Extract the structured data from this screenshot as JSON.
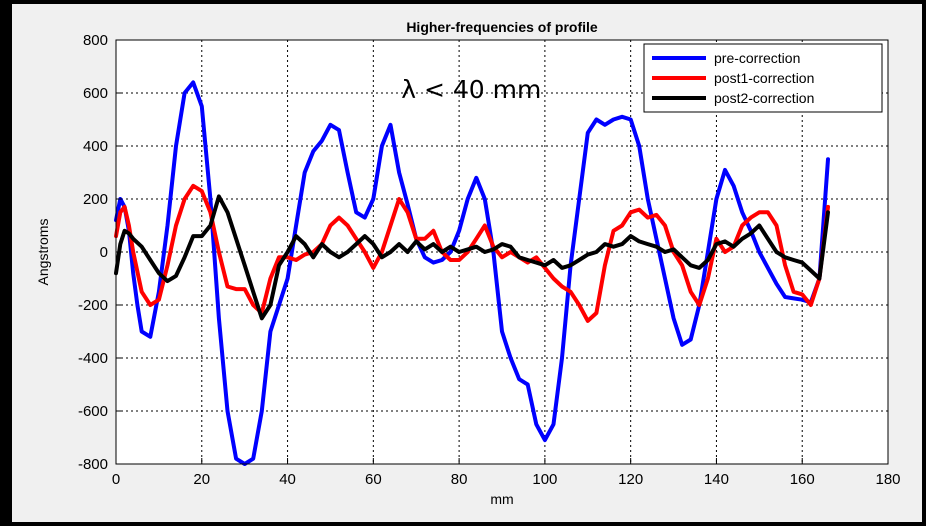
{
  "chart_data": {
    "type": "line",
    "title": "Higher-frequencies of profile",
    "xlabel": "mm",
    "ylabel": "Angstroms",
    "xlim": [
      0,
      180
    ],
    "ylim": [
      -800,
      800
    ],
    "xticks": [
      "0",
      "20",
      "40",
      "60",
      "80",
      "100",
      "120",
      "140",
      "160",
      "180"
    ],
    "yticks": [
      "800",
      "600",
      "400",
      "200",
      "0",
      "-200",
      "-400",
      "-600",
      "-800"
    ],
    "grid": true,
    "legend_position": "top-right",
    "annotation": "λ < 40 mm",
    "series": [
      {
        "name": "pre-correction",
        "color": "#0000ff",
        "x": [
          0,
          1,
          2,
          3,
          4,
          5,
          6,
          8,
          10,
          12,
          14,
          16,
          18,
          20,
          22,
          24,
          26,
          28,
          30,
          32,
          34,
          36,
          38,
          40,
          42,
          44,
          46,
          48,
          50,
          52,
          54,
          56,
          58,
          60,
          62,
          64,
          66,
          68,
          70,
          72,
          74,
          76,
          78,
          80,
          82,
          84,
          86,
          88,
          90,
          92,
          94,
          96,
          98,
          100,
          102,
          104,
          106,
          108,
          110,
          112,
          114,
          116,
          118,
          120,
          122,
          124,
          126,
          128,
          130,
          132,
          134,
          136,
          138,
          140,
          142,
          144,
          146,
          148,
          150,
          152,
          154,
          156,
          158,
          160,
          162,
          164,
          166
        ],
        "values": [
          120,
          200,
          170,
          80,
          -80,
          -200,
          -300,
          -320,
          -150,
          100,
          400,
          600,
          640,
          550,
          200,
          -250,
          -600,
          -780,
          -800,
          -780,
          -600,
          -300,
          -200,
          -100,
          100,
          300,
          380,
          420,
          480,
          460,
          300,
          150,
          130,
          200,
          400,
          480,
          300,
          180,
          50,
          -20,
          -40,
          -30,
          0,
          80,
          200,
          280,
          200,
          0,
          -300,
          -400,
          -480,
          -500,
          -650,
          -710,
          -650,
          -400,
          -50,
          200,
          450,
          500,
          480,
          500,
          510,
          500,
          400,
          200,
          50,
          -100,
          -250,
          -350,
          -330,
          -200,
          0,
          200,
          310,
          250,
          150,
          80,
          0,
          -60,
          -120,
          -170,
          -175,
          -180,
          -190,
          -100,
          350
        ]
      },
      {
        "name": "post1-correction",
        "color": "#ff0000",
        "x": [
          0,
          1,
          2,
          3,
          4,
          6,
          8,
          10,
          12,
          14,
          16,
          18,
          20,
          22,
          24,
          26,
          28,
          30,
          32,
          34,
          36,
          38,
          40,
          42,
          44,
          46,
          48,
          50,
          52,
          54,
          56,
          58,
          60,
          62,
          64,
          66,
          68,
          70,
          72,
          74,
          76,
          78,
          80,
          82,
          84,
          86,
          88,
          90,
          92,
          94,
          96,
          98,
          100,
          102,
          104,
          106,
          108,
          110,
          112,
          114,
          116,
          118,
          120,
          122,
          124,
          126,
          128,
          130,
          132,
          134,
          136,
          138,
          140,
          142,
          144,
          146,
          148,
          150,
          152,
          154,
          156,
          158,
          160,
          162,
          164,
          166
        ],
        "values": [
          60,
          150,
          170,
          100,
          0,
          -150,
          -200,
          -180,
          -50,
          100,
          200,
          250,
          230,
          150,
          0,
          -130,
          -140,
          -140,
          -200,
          -230,
          -100,
          -20,
          -20,
          -30,
          -10,
          0,
          30,
          100,
          130,
          100,
          50,
          0,
          -60,
          0,
          100,
          200,
          150,
          50,
          50,
          80,
          0,
          -30,
          -30,
          0,
          50,
          100,
          20,
          -20,
          0,
          -20,
          -40,
          -20,
          -60,
          -100,
          -130,
          -150,
          -200,
          -260,
          -230,
          -50,
          80,
          100,
          150,
          160,
          130,
          140,
          100,
          0,
          -50,
          -150,
          -200,
          -100,
          50,
          0,
          20,
          100,
          130,
          150,
          150,
          100,
          -50,
          -150,
          -160,
          -200,
          -100,
          170
        ]
      },
      {
        "name": "post2-correction",
        "color": "#000000",
        "x": [
          0,
          1,
          2,
          3,
          4,
          6,
          8,
          10,
          12,
          14,
          16,
          18,
          20,
          22,
          24,
          26,
          28,
          30,
          32,
          34,
          36,
          38,
          40,
          42,
          44,
          46,
          48,
          50,
          52,
          54,
          56,
          58,
          60,
          62,
          64,
          66,
          68,
          70,
          72,
          74,
          76,
          78,
          80,
          82,
          84,
          86,
          88,
          90,
          92,
          94,
          96,
          98,
          100,
          102,
          104,
          106,
          108,
          110,
          112,
          114,
          116,
          118,
          120,
          122,
          124,
          126,
          128,
          130,
          132,
          134,
          136,
          138,
          140,
          142,
          144,
          146,
          148,
          150,
          152,
          154,
          156,
          158,
          160,
          162,
          164,
          166
        ],
        "values": [
          -80,
          30,
          80,
          70,
          50,
          20,
          -30,
          -80,
          -110,
          -90,
          -20,
          60,
          60,
          100,
          210,
          150,
          50,
          -50,
          -150,
          -250,
          -200,
          -50,
          0,
          60,
          30,
          -20,
          30,
          0,
          -20,
          0,
          30,
          60,
          30,
          -20,
          0,
          30,
          0,
          40,
          10,
          30,
          0,
          20,
          0,
          10,
          20,
          0,
          10,
          30,
          20,
          -20,
          -30,
          -40,
          -50,
          -30,
          -60,
          -50,
          -30,
          -10,
          0,
          30,
          20,
          30,
          60,
          40,
          30,
          20,
          0,
          10,
          -20,
          -50,
          -60,
          -30,
          30,
          40,
          20,
          50,
          70,
          100,
          50,
          0,
          -20,
          -30,
          -40,
          -70,
          -100,
          150
        ]
      }
    ]
  }
}
